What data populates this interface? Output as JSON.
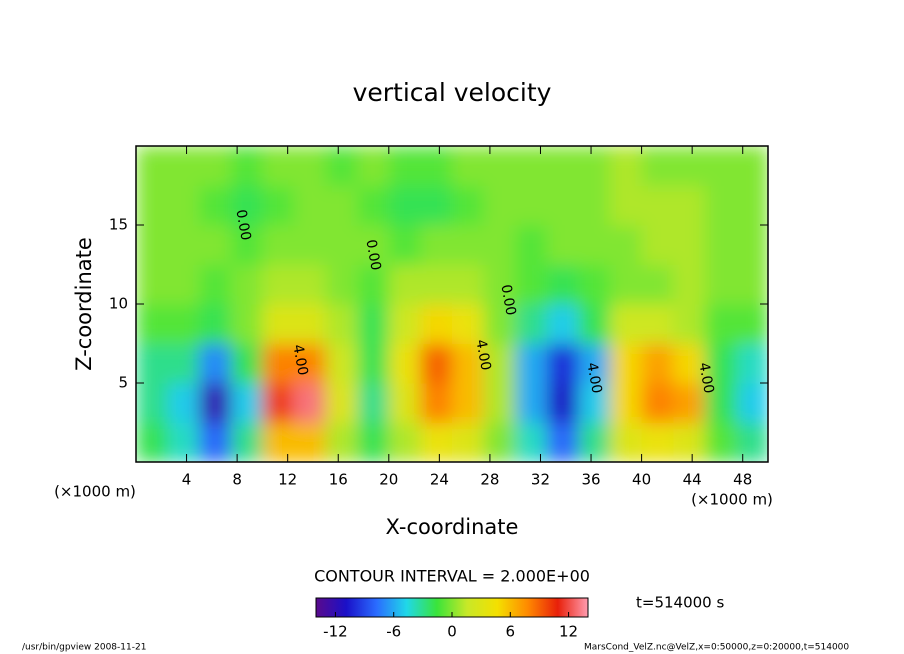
{
  "chart_data": {
    "type": "contour",
    "title": "vertical velocity",
    "xlabel": "X-coordinate",
    "ylabel": "Z-coordinate",
    "x_unit": "(×1000 m)",
    "contour_interval": "CONTOUR INTERVAL = 2.000E+00",
    "time_label": "t=514000 s",
    "footer_left": "/usr/bin/gpview  2008-11-21",
    "footer_right": "MarsCond_VelZ.nc@VelZ,x=0:50000,z=0:20000,t=514000",
    "contour_labels": [
      "4.00",
      "4.00",
      "4.00",
      "4.00",
      "0.00",
      "0.00",
      "0.00"
    ],
    "xlim": [
      0,
      50
    ],
    "ylim": [
      0,
      20
    ],
    "xticks": [
      4,
      8,
      12,
      16,
      20,
      24,
      28,
      32,
      36,
      40,
      44,
      48
    ],
    "yticks": [
      5,
      10,
      15
    ],
    "clim": [
      -14,
      14
    ],
    "cticks": [
      -12,
      -6,
      0,
      6,
      12
    ],
    "colors": [
      "#5a0a8c",
      "#1a10c8",
      "#2a6cff",
      "#20d8e8",
      "#3ae43a",
      "#c8e828",
      "#f4e000",
      "#ff8a00",
      "#e8200a",
      "#ff9cb0"
    ],
    "x": [
      1.25,
      3.75,
      6.25,
      8.75,
      11.25,
      13.75,
      16.25,
      18.75,
      21.25,
      23.75,
      26.25,
      28.75,
      31.25,
      33.75,
      36.25,
      38.75,
      41.25,
      43.75,
      46.25,
      48.75
    ],
    "y": [
      1.25,
      3.75,
      6.25,
      8.75,
      11.25,
      13.75,
      16.25,
      18.75
    ],
    "values": [
      [
        -2,
        -4,
        -8,
        -3,
        6,
        6,
        1,
        -2,
        1,
        4,
        3,
        0,
        -4,
        -8,
        -3,
        3,
        4,
        3,
        -1,
        -3
      ],
      [
        -3,
        -5,
        -12,
        -5,
        10,
        13,
        3,
        -3,
        3,
        8,
        6,
        1,
        -6,
        -11,
        -5,
        5,
        8,
        7,
        -2,
        -5
      ],
      [
        -3,
        -3,
        -7,
        -2,
        8,
        8,
        2,
        -2,
        4,
        9,
        6,
        1,
        -6,
        -10,
        -6,
        5,
        7,
        5,
        -2,
        -4
      ],
      [
        -1,
        -1,
        -2,
        0,
        3,
        3,
        1,
        -2,
        2,
        5,
        4,
        0,
        -3,
        -5,
        -2,
        2,
        2,
        1,
        -1,
        -1
      ],
      [
        0,
        0,
        -1,
        0,
        1,
        1,
        0,
        -1,
        1,
        1,
        1,
        0,
        -1,
        -2,
        -1,
        0,
        0,
        1,
        0,
        0
      ],
      [
        0,
        0,
        0,
        -1,
        0,
        0,
        0,
        0,
        -1,
        0,
        0,
        0,
        -1,
        0,
        0,
        0,
        1,
        1,
        0,
        0
      ],
      [
        0,
        0,
        -1,
        -2,
        -1,
        0,
        0,
        -1,
        -2,
        -2,
        -1,
        0,
        0,
        0,
        0,
        1,
        1,
        1,
        0,
        0
      ],
      [
        0,
        0,
        0,
        -1,
        0,
        0,
        -1,
        0,
        -1,
        -1,
        0,
        0,
        0,
        0,
        0,
        1,
        0,
        0,
        0,
        0
      ]
    ]
  }
}
